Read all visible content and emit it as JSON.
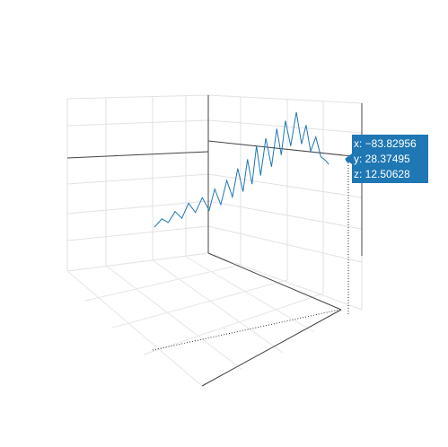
{
  "chart_data": {
    "type": "line3d",
    "title": "",
    "series": [
      {
        "name": "",
        "color": "#1f77b4",
        "points": [
          [
            -90.0,
            -95.0,
            2.0
          ],
          [
            -89.0,
            -92.0,
            3.1
          ],
          [
            -88.0,
            -90.0,
            2.4
          ],
          [
            -87.5,
            -86.0,
            4.0
          ],
          [
            -87.0,
            -82.0,
            3.0
          ],
          [
            -86.5,
            -78.0,
            5.2
          ],
          [
            -86.0,
            -74.0,
            3.8
          ],
          [
            -85.5,
            -70.0,
            6.0
          ],
          [
            -85.0,
            -66.0,
            4.1
          ],
          [
            -84.8,
            -62.0,
            7.3
          ],
          [
            -84.5,
            -58.0,
            5.0
          ],
          [
            -84.2,
            -54.0,
            8.6
          ],
          [
            -84.0,
            -50.0,
            6.2
          ],
          [
            -83.9,
            -46.0,
            10.5
          ],
          [
            -83.8,
            -42.0,
            7.1
          ],
          [
            -83.9,
            -38.0,
            12.0
          ],
          [
            -84.0,
            -34.0,
            8.4
          ],
          [
            -84.1,
            -30.0,
            14.2
          ],
          [
            -84.3,
            -26.0,
            9.9
          ],
          [
            -84.2,
            -22.0,
            15.5
          ],
          [
            -84.0,
            -18.0,
            11.3
          ],
          [
            -83.9,
            -14.0,
            17.0
          ],
          [
            -84.0,
            -10.0,
            13.2
          ],
          [
            -84.2,
            -6.0,
            18.4
          ],
          [
            -84.1,
            -2.0,
            14.7
          ],
          [
            -83.9,
            2.0,
            19.8
          ],
          [
            -83.8,
            6.0,
            15.1
          ],
          [
            -83.9,
            10.0,
            18.0
          ],
          [
            -84.0,
            14.0,
            14.2
          ],
          [
            -83.9,
            18.0,
            16.4
          ],
          [
            -83.85,
            22.0,
            13.5
          ],
          [
            -83.83,
            26.0,
            13.0
          ],
          [
            -83.82956,
            28.37495,
            12.50628
          ]
        ]
      }
    ],
    "hover": {
      "x_text": "x: −83.82956",
      "y_text": "y: 28.37495",
      "z_text": "z: 12.50628"
    },
    "xlabel": "",
    "ylabel": "",
    "zlabel": ""
  }
}
